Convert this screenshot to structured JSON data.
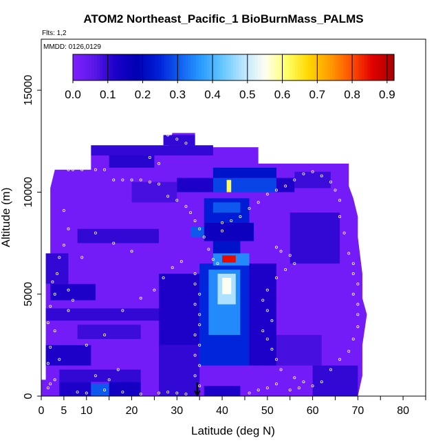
{
  "chart_data": {
    "type": "heatmap",
    "title": "ATOM2 Northeast_Pacific_1 BioBurnMass_PALMS",
    "flights_label": "Flts: 1,2",
    "dates_label": "MMDD: 0126,0129",
    "xlabel": "Latitude (deg N)",
    "ylabel": "Altitude (m)",
    "xlim": [
      0,
      85
    ],
    "ylim": [
      0,
      17500
    ],
    "x_ticks": [
      0,
      5,
      10,
      20,
      30,
      40,
      50,
      60,
      70,
      80
    ],
    "x_minor_ticks": [
      15,
      25,
      35,
      45,
      55,
      65,
      75,
      85
    ],
    "y_ticks": [
      0,
      5000,
      10000,
      15000
    ],
    "colorbar": {
      "min": 0,
      "max": 0.92,
      "ticks": [
        0.0,
        0.1,
        0.2,
        0.3,
        0.4,
        0.5,
        0.6,
        0.7,
        0.8,
        0.9
      ],
      "tick_labels": [
        "0.0",
        "0.1",
        "0.2",
        "0.3",
        "0.4",
        "0.5",
        "0.6",
        "0.7",
        "0.8",
        "0.9"
      ],
      "colors": [
        "#7f1fff",
        "#5a17e8",
        "#1a00c8",
        "#0000b4",
        "#0020d8",
        "#1060f0",
        "#2a9cff",
        "#66c8ff",
        "#bde6ff",
        "#fffff0",
        "#ffff66",
        "#ffd700",
        "#ff9d00",
        "#ff5000",
        "#e00000",
        "#a80000"
      ]
    },
    "marker_latitude": 34.5,
    "background_value": 0.02,
    "grid": false,
    "patches": [
      {
        "x": [
          4,
          11
        ],
        "y": [
          0,
          700
        ],
        "v": 0.12
      },
      {
        "x": [
          11,
          15
        ],
        "y": [
          0,
          600
        ],
        "v": 0.3
      },
      {
        "x": [
          15,
          22
        ],
        "y": [
          0,
          700
        ],
        "v": 0.14
      },
      {
        "x": [
          36,
          44
        ],
        "y": [
          0,
          500
        ],
        "v": 0.12
      },
      {
        "x": [
          4,
          22
        ],
        "y": [
          700,
          1300
        ],
        "v": 0.1
      },
      {
        "x": [
          1,
          11
        ],
        "y": [
          1500,
          2500
        ],
        "v": 0.12
      },
      {
        "x": [
          8,
          22
        ],
        "y": [
          2800,
          3500
        ],
        "v": 0.09
      },
      {
        "x": [
          1,
          28
        ],
        "y": [
          3700,
          4300
        ],
        "v": 0.1
      },
      {
        "x": [
          2,
          12
        ],
        "y": [
          4700,
          5500
        ],
        "v": 0.12
      },
      {
        "x": [
          1,
          6
        ],
        "y": [
          5500,
          7000
        ],
        "v": 0.1
      },
      {
        "x": [
          26,
          35
        ],
        "y": [
          0,
          2500
        ],
        "v": 0.1
      },
      {
        "x": [
          26,
          35
        ],
        "y": [
          2500,
          6000
        ],
        "v": 0.12
      },
      {
        "x": [
          35,
          46
        ],
        "y": [
          1500,
          6500
        ],
        "v": 0.25
      },
      {
        "x": [
          37,
          44
        ],
        "y": [
          3000,
          6200
        ],
        "v": 0.35
      },
      {
        "x": [
          39,
          43
        ],
        "y": [
          4500,
          6000
        ],
        "v": 0.48
      },
      {
        "x": [
          40,
          42
        ],
        "y": [
          5000,
          5800
        ],
        "v": 0.55
      },
      {
        "x": [
          46,
          52
        ],
        "y": [
          1500,
          6500
        ],
        "v": 0.12
      },
      {
        "x": [
          38,
          46
        ],
        "y": [
          6400,
          7000
        ],
        "v": 0.35
      },
      {
        "x": [
          40,
          43
        ],
        "y": [
          6550,
          6900
        ],
        "v": 0.85
      },
      {
        "x": [
          38,
          44
        ],
        "y": [
          7000,
          7600
        ],
        "v": 0.22
      },
      {
        "x": [
          36,
          47
        ],
        "y": [
          7600,
          8500
        ],
        "v": 0.15
      },
      {
        "x": [
          36,
          46
        ],
        "y": [
          8500,
          9700
        ],
        "v": 0.24
      },
      {
        "x": [
          38,
          44
        ],
        "y": [
          9000,
          9500
        ],
        "v": 0.3
      },
      {
        "x": [
          30,
          56
        ],
        "y": [
          10000,
          10700
        ],
        "v": 0.12
      },
      {
        "x": [
          38,
          52
        ],
        "y": [
          10000,
          10700
        ],
        "v": 0.28
      },
      {
        "x": [
          41,
          42
        ],
        "y": [
          10000,
          10600
        ],
        "v": 0.62
      },
      {
        "x": [
          38,
          52
        ],
        "y": [
          10700,
          11200
        ],
        "v": 0.22
      },
      {
        "x": [
          15,
          25
        ],
        "y": [
          11200,
          12000
        ],
        "v": 0.11
      },
      {
        "x": [
          11,
          38
        ],
        "y": [
          11800,
          12300
        ],
        "v": 0.1
      },
      {
        "x": [
          27,
          34
        ],
        "y": [
          12300,
          12800
        ],
        "v": 0.1
      },
      {
        "x": [
          55,
          66
        ],
        "y": [
          6500,
          9000
        ],
        "v": 0.1
      },
      {
        "x": [
          52,
          62
        ],
        "y": [
          1500,
          3000
        ],
        "v": 0.08
      },
      {
        "x": [
          60,
          70
        ],
        "y": [
          0,
          1500
        ],
        "v": 0.1
      },
      {
        "x": [
          8,
          26
        ],
        "y": [
          7500,
          8200
        ],
        "v": 0.1
      },
      {
        "x": [
          33,
          36
        ],
        "y": [
          7800,
          8300
        ],
        "v": 0.3
      },
      {
        "x": [
          20,
          30
        ],
        "y": [
          9500,
          10500
        ],
        "v": 0.08
      },
      {
        "x": [
          56,
          64
        ],
        "y": [
          10200,
          11000
        ],
        "v": 0.09
      }
    ],
    "sample_points": [
      [
        1.5,
        400
      ],
      [
        2,
        600
      ],
      [
        3,
        800
      ],
      [
        1.5,
        1600
      ],
      [
        4,
        1800
      ],
      [
        2,
        2400
      ],
      [
        3,
        3200
      ],
      [
        1.5,
        3600
      ],
      [
        2,
        4400
      ],
      [
        3,
        5000
      ],
      [
        2.5,
        5600
      ],
      [
        3.5,
        6000
      ],
      [
        4,
        6800
      ],
      [
        5,
        7400
      ],
      [
        6,
        8200
      ],
      [
        5,
        9100
      ],
      [
        6,
        11100
      ],
      [
        7,
        11100
      ],
      [
        9,
        11100
      ],
      [
        12,
        11100
      ],
      [
        14,
        11100
      ],
      [
        16,
        10600
      ],
      [
        18,
        10600
      ],
      [
        20,
        10600
      ],
      [
        22,
        10600
      ],
      [
        24,
        10500
      ],
      [
        26,
        10400
      ],
      [
        28,
        9800
      ],
      [
        30,
        9600
      ],
      [
        32,
        9300
      ],
      [
        33,
        9000
      ],
      [
        34,
        8600
      ],
      [
        35,
        8200
      ],
      [
        36,
        7800
      ],
      [
        37,
        7200
      ],
      [
        38,
        6700
      ],
      [
        39,
        6500
      ],
      [
        34,
        6000
      ],
      [
        34,
        5500
      ],
      [
        35,
        5000
      ],
      [
        34,
        4500
      ],
      [
        35,
        4000
      ],
      [
        35,
        3500
      ],
      [
        34,
        3000
      ],
      [
        35,
        2500
      ],
      [
        34,
        2000
      ],
      [
        35,
        1500
      ],
      [
        34,
        1000
      ],
      [
        35,
        500
      ],
      [
        8,
        200
      ],
      [
        10,
        150
      ],
      [
        14,
        300
      ],
      [
        18,
        200
      ],
      [
        22,
        100
      ],
      [
        26,
        150
      ],
      [
        28,
        200
      ],
      [
        30,
        150
      ],
      [
        32,
        100
      ],
      [
        46,
        150
      ],
      [
        48,
        300
      ],
      [
        50,
        400
      ],
      [
        52,
        600
      ],
      [
        55,
        300
      ],
      [
        57,
        400
      ],
      [
        60,
        500
      ],
      [
        62,
        700
      ],
      [
        64,
        1300
      ],
      [
        66,
        1800
      ],
      [
        68,
        2200
      ],
      [
        69,
        2800
      ],
      [
        70,
        3400
      ],
      [
        70,
        4000
      ],
      [
        70,
        4500
      ],
      [
        69,
        5000
      ],
      [
        70,
        5500
      ],
      [
        69,
        6000
      ],
      [
        69,
        6500
      ],
      [
        68,
        7000
      ],
      [
        67,
        8000
      ],
      [
        66,
        8800
      ],
      [
        66,
        9600
      ],
      [
        65,
        10100
      ],
      [
        64,
        10500
      ],
      [
        62,
        10800
      ],
      [
        60,
        11000
      ],
      [
        58,
        10900
      ],
      [
        56,
        10600
      ],
      [
        54,
        10300
      ],
      [
        52,
        10100
      ],
      [
        50,
        9900
      ],
      [
        48,
        9500
      ],
      [
        46,
        9200
      ],
      [
        44,
        8800
      ],
      [
        42,
        8600
      ],
      [
        40,
        8500
      ],
      [
        40,
        8100
      ],
      [
        52,
        7300
      ],
      [
        53,
        7100
      ],
      [
        55,
        6900
      ],
      [
        56,
        6500
      ],
      [
        54,
        6200
      ],
      [
        52,
        5800
      ],
      [
        50,
        5200
      ],
      [
        49,
        4700
      ],
      [
        50,
        4200
      ],
      [
        51,
        3700
      ],
      [
        49,
        3200
      ],
      [
        50,
        2800
      ],
      [
        51,
        2300
      ],
      [
        52,
        1800
      ],
      [
        53,
        1300
      ],
      [
        56,
        900
      ],
      [
        58,
        700
      ],
      [
        12,
        1000
      ],
      [
        15,
        800
      ],
      [
        17,
        1300
      ],
      [
        10,
        2500
      ],
      [
        14,
        3000
      ],
      [
        18,
        4200
      ],
      [
        22,
        4800
      ],
      [
        25,
        5200
      ],
      [
        27,
        5800
      ],
      [
        29,
        6300
      ],
      [
        31,
        6600
      ],
      [
        20,
        7100
      ],
      [
        16,
        7500
      ],
      [
        12,
        8000
      ],
      [
        9,
        6800
      ],
      [
        6,
        5200
      ],
      [
        7,
        4700
      ],
      [
        6,
        4200
      ],
      [
        24,
        11700
      ],
      [
        22,
        12400
      ],
      [
        28,
        12800
      ],
      [
        30,
        12600
      ],
      [
        32,
        12400
      ],
      [
        26,
        11400
      ]
    ]
  }
}
